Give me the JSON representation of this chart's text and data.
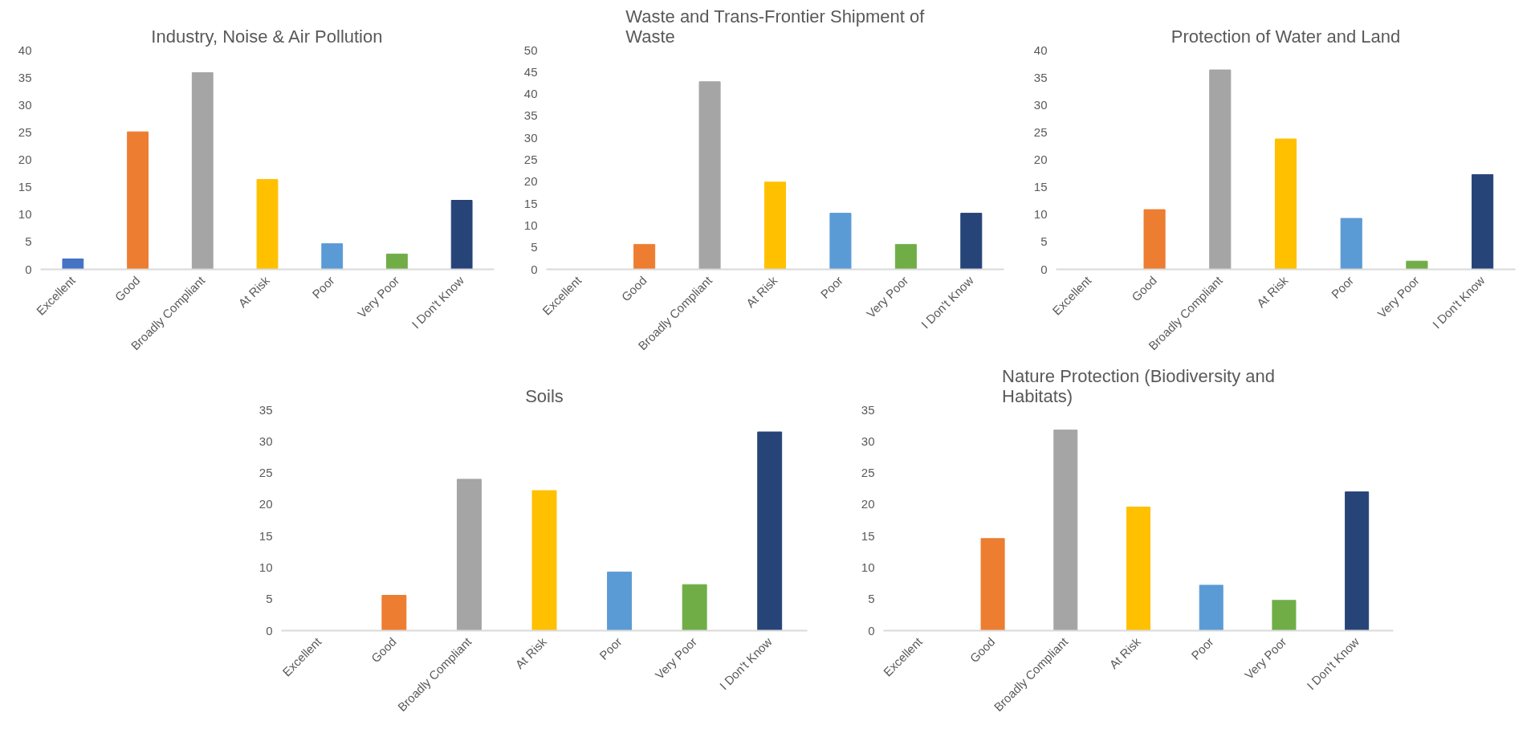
{
  "chart_data": [
    {
      "type": "bar",
      "title": "Industry, Noise & Air Pollution",
      "categories": [
        "Excellent",
        "Good",
        "Broadly Compliant",
        "At Risk",
        "Poor",
        "Very Poor",
        "I Don't Know"
      ],
      "values": [
        1.9,
        25.1,
        35.9,
        16.4,
        4.7,
        2.8,
        12.6
      ],
      "colors": [
        "#4472c4",
        "#ed7d31",
        "#a5a5a5",
        "#ffc000",
        "#5b9bd5",
        "#70ad47",
        "#264478"
      ],
      "ylim": [
        0,
        40
      ],
      "yticks": [
        0,
        5,
        10,
        15,
        20,
        25,
        30,
        35,
        40
      ],
      "grid": false
    },
    {
      "type": "bar",
      "title": "Waste and Trans-Frontier Shipment of Waste",
      "categories": [
        "Excellent",
        "Good",
        "Broadly Compliant",
        "At Risk",
        "Poor",
        "Very Poor",
        "I Don't Know"
      ],
      "values": [
        0,
        5.7,
        42.8,
        19.9,
        12.8,
        5.7,
        12.8
      ],
      "colors": [
        "#4472c4",
        "#ed7d31",
        "#a5a5a5",
        "#ffc000",
        "#5b9bd5",
        "#70ad47",
        "#264478"
      ],
      "ylim": [
        0,
        50
      ],
      "yticks": [
        0,
        5,
        10,
        15,
        20,
        25,
        30,
        35,
        40,
        45,
        50
      ],
      "grid": false
    },
    {
      "type": "bar",
      "title": "Protection of Water and Land",
      "categories": [
        "Excellent",
        "Good",
        "Broadly Compliant",
        "At Risk",
        "Poor",
        "Very Poor",
        "I Don't Know"
      ],
      "values": [
        0,
        10.9,
        36.4,
        23.8,
        9.3,
        1.5,
        17.3
      ],
      "colors": [
        "#4472c4",
        "#ed7d31",
        "#a5a5a5",
        "#ffc000",
        "#5b9bd5",
        "#70ad47",
        "#264478"
      ],
      "ylim": [
        0,
        40
      ],
      "yticks": [
        0,
        5,
        10,
        15,
        20,
        25,
        30,
        35,
        40
      ],
      "grid": false
    },
    {
      "type": "bar",
      "title": "Soils",
      "categories": [
        "Excellent",
        "Good",
        "Broadly Compliant",
        "At Risk",
        "Poor",
        "Very Poor",
        "I Don't Know"
      ],
      "values": [
        0,
        5.6,
        24.0,
        22.2,
        9.3,
        7.3,
        31.5
      ],
      "colors": [
        "#4472c4",
        "#ed7d31",
        "#a5a5a5",
        "#ffc000",
        "#5b9bd5",
        "#70ad47",
        "#264478"
      ],
      "ylim": [
        0,
        35
      ],
      "yticks": [
        0,
        5,
        10,
        15,
        20,
        25,
        30,
        35
      ],
      "grid": false
    },
    {
      "type": "bar",
      "title": "Nature Protection (Biodiversity and Habitats)",
      "categories": [
        "Excellent",
        "Good",
        "Broadly Compliant",
        "At Risk",
        "Poor",
        "Very Poor",
        "I Don't Know"
      ],
      "values": [
        0,
        14.6,
        31.8,
        19.6,
        7.2,
        4.8,
        22.0
      ],
      "colors": [
        "#4472c4",
        "#ed7d31",
        "#a5a5a5",
        "#ffc000",
        "#5b9bd5",
        "#70ad47",
        "#264478"
      ],
      "ylim": [
        0,
        35
      ],
      "yticks": [
        0,
        5,
        10,
        15,
        20,
        25,
        30,
        35
      ],
      "grid": false
    }
  ]
}
